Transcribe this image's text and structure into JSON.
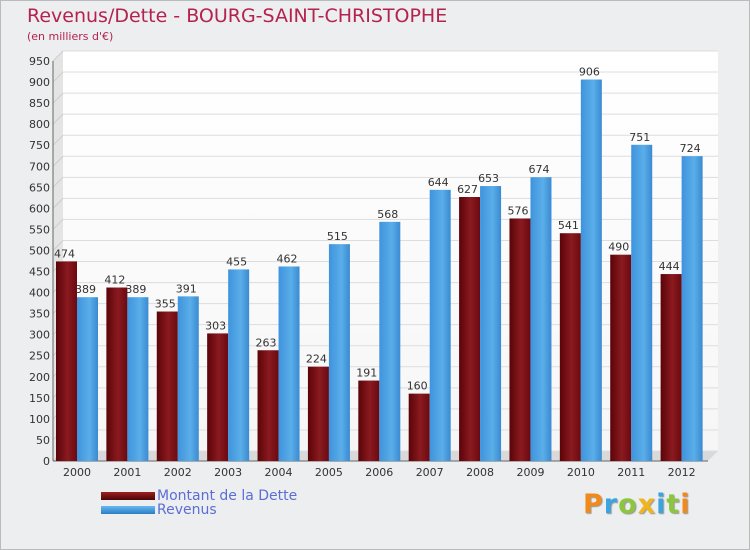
{
  "colors": {
    "dette": "#6e0a10",
    "revenus": "#3d92dc",
    "title": "#b5224e",
    "legend_text": "#5b6ed6"
  },
  "logo": {
    "text": "Proxiti",
    "letters": [
      {
        "ch": "P",
        "color": "#f08a1c"
      },
      {
        "ch": "r",
        "color": "#3aa4e0"
      },
      {
        "ch": "o",
        "color": "#8cc63f"
      },
      {
        "ch": "x",
        "color": "#f0b51c"
      },
      {
        "ch": "i",
        "color": "#3aa4e0"
      },
      {
        "ch": "t",
        "color": "#8cc63f"
      },
      {
        "ch": "i",
        "color": "#f08a1c"
      }
    ]
  },
  "chart_data": {
    "type": "bar",
    "title": "Revenus/Dette - BOURG-SAINT-CHRISTOPHE",
    "subtitle": "(en milliers d'€)",
    "categories": [
      "2000",
      "2001",
      "2002",
      "2003",
      "2004",
      "2005",
      "2006",
      "2007",
      "2008",
      "2009",
      "2010",
      "2011",
      "2012"
    ],
    "series": [
      {
        "name": "Montant de la Dette",
        "key": "dette",
        "values": [
          474,
          412,
          355,
          303,
          263,
          224,
          191,
          160,
          627,
          576,
          541,
          490,
          444
        ]
      },
      {
        "name": "Revenus",
        "key": "revenus",
        "values": [
          389,
          389,
          391,
          455,
          462,
          515,
          568,
          644,
          653,
          674,
          906,
          751,
          724
        ]
      }
    ],
    "ylim": [
      0,
      950
    ],
    "yticks": [
      0,
      50,
      100,
      150,
      200,
      250,
      300,
      350,
      400,
      450,
      500,
      550,
      600,
      650,
      700,
      750,
      800,
      850,
      900,
      950
    ],
    "grid": true,
    "legend": "bottom-left"
  }
}
